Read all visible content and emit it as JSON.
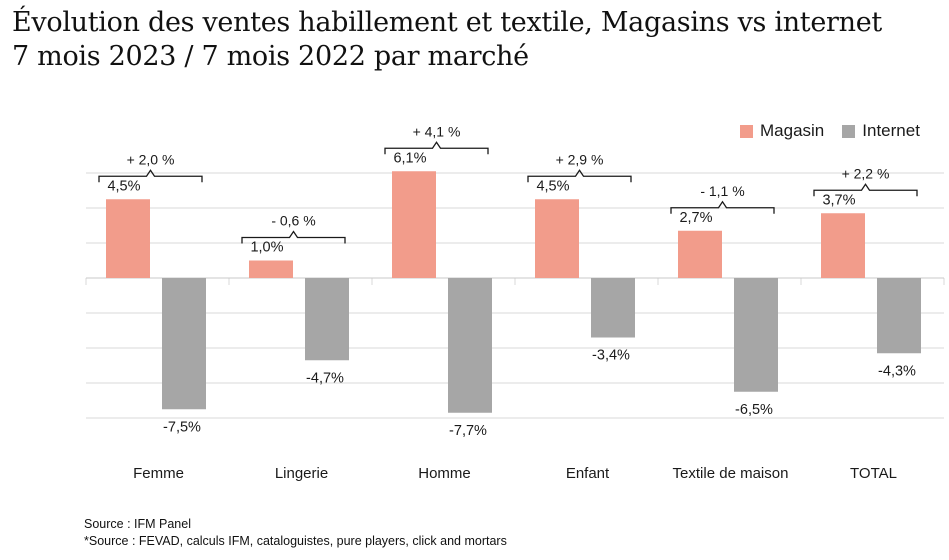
{
  "title_line1": "Évolution des ventes habillement et textile, Magasins vs internet",
  "title_line2": "7 mois 2023 / 7 mois 2022 par marché",
  "legend": [
    {
      "label": "Magasin",
      "color": "#f29c8b"
    },
    {
      "label": "Internet",
      "color": "#a6a6a6"
    }
  ],
  "source_1": "Source : IFM Panel",
  "source_2": "*Source : FEVAD, calculs IFM, cataloguistes, pure players, click and mortars",
  "chart_data": {
    "type": "bar",
    "categories": [
      "Femme",
      "Lingerie",
      "Homme",
      "Enfant",
      "Textile de maison",
      "TOTAL"
    ],
    "series": [
      {
        "name": "Magasin",
        "values": [
          4.5,
          1.0,
          6.1,
          4.5,
          2.7,
          3.7
        ],
        "labels": [
          "4,5%",
          "1,0%",
          "6,1%",
          "4,5%",
          "2,7%",
          "3,7%"
        ],
        "color": "#f29c8b"
      },
      {
        "name": "Internet",
        "values": [
          -7.5,
          -4.7,
          -7.7,
          -3.4,
          -6.5,
          -4.3
        ],
        "labels": [
          "-7,5%",
          "-4,7%",
          "-7,7%",
          "-3,4%",
          "-6,5%",
          "-4,3%"
        ],
        "color": "#a6a6a6"
      }
    ],
    "annotations": [
      "+ 2,0 %",
      "- 0,6 %",
      "+ 4,1 %",
      "+ 2,9 %",
      "- 1,1 %",
      "+ 2,2 %"
    ],
    "grid": true,
    "legend_position": "top-right"
  }
}
